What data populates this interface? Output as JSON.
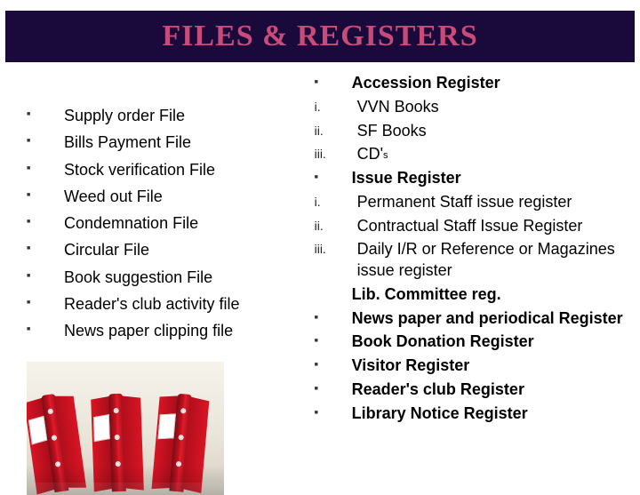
{
  "title": "FILES & REGISTERS",
  "colors": {
    "banner_bg": "#1a093b",
    "banner_text": "#c94b7a",
    "text": "#000000",
    "binder_red": "#d91424",
    "binder_dark": "#7a0c15",
    "image_bg_top": "#f6f3ec",
    "image_bg_bottom": "#d8d2c5"
  },
  "left_items": [
    "Supply order File",
    "Bills Payment File",
    "Stock verification File",
    "Weed out  File",
    "Condemnation File",
    "Circular File",
    "Book suggestion File",
    "Reader's club activity file",
    "News paper clipping file"
  ],
  "right_items": [
    {
      "marker": "square",
      "text": "Accession Register",
      "bold": true
    },
    {
      "marker": "i.",
      "text": " VVN Books",
      "indent": true
    },
    {
      "marker": "ii.",
      "text": "SF Books",
      "indent": true
    },
    {
      "marker": "iii.",
      "text": "CD'",
      "suffix_small": "s",
      "indent": true
    },
    {
      "marker": "square",
      "text": "Issue  Register",
      "bold": true
    },
    {
      "marker": "i.",
      "text": "Permanent Staff issue register",
      "indent": true
    },
    {
      "marker": "ii.",
      "text": "Contractual Staff Issue Register",
      "indent": true
    },
    {
      "marker": "iii.",
      "text": "Daily I/R or Reference or Magazines issue register",
      "indent": true
    },
    {
      "marker": "",
      "text": " Lib. Committee reg.",
      "bold": true,
      "hang": true
    },
    {
      "marker": "square",
      "text": "News paper and periodical Register",
      "bold": true
    },
    {
      "marker": "square",
      "text": "Book Donation Register",
      "bold": true
    },
    {
      "marker": "square",
      "text": "Visitor Register",
      "bold": true
    },
    {
      "marker": "square",
      "text": "Reader's club Register",
      "bold": true
    },
    {
      "marker": "square",
      "text": "Library Notice Register",
      "bold": true
    }
  ],
  "typography": {
    "title_fontsize": 34,
    "body_fontsize": 18,
    "roman_fontsize": 14
  },
  "image": {
    "description": "red-ring-binders",
    "binder_count": 3
  }
}
